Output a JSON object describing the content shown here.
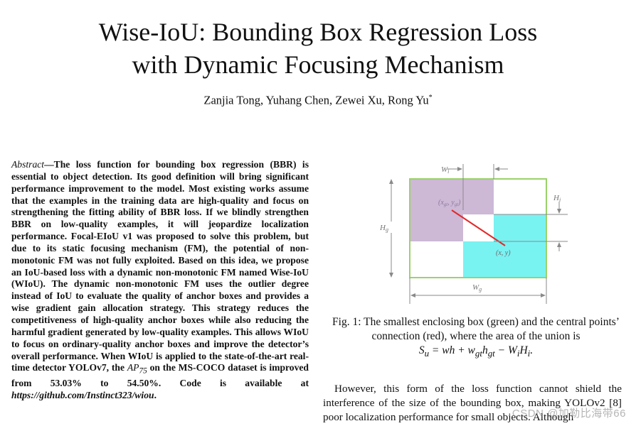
{
  "title_line1": "Wise-IoU: Bounding Box Regression Loss",
  "title_line2": "with Dynamic Focusing Mechanism",
  "authors": "Zanjia Tong, Yuhang Chen, Zewei Xu, Rong Yu",
  "author_mark": "*",
  "abstract": {
    "lead": "Abstract",
    "dash": "—",
    "text": "The loss function for bounding box regression (BBR) is essential to object detection. Its good definition will bring significant performance improvement to the model. Most existing works assume that the examples in the training data are high-quality and focus on strengthening the fitting ability of BBR loss. If we blindly strengthen BBR on low-quality examples, it will jeopardize localization performance. Focal-EIoU v1 was proposed to solve this problem, but due to its static focusing mechanism (FM), the potential of non-monotonic FM was not fully exploited. Based on this idea, we propose an IoU-based loss with a dynamic non-monotonic FM named Wise-IoU (WIoU). The dynamic non-monotonic FM uses the outlier degree instead of IoU to evaluate the quality of anchor boxes and provides a wise gradient gain allocation strategy. This strategy reduces the competitiveness of high-quality anchor boxes while also reducing the harmful gradient generated by low-quality examples. This allows WIoU to focus on ordinary-quality anchor boxes and improve the detector’s overall performance. When WIoU is applied to the state-of-the-art real-time detector YOLOv7, the",
    "ap_symbol": "AP",
    "ap_sub": "75",
    "text2": " on the MS-COCO dataset is improved from 53.03% to 54.50%. Code is available at ",
    "code_url": "https://github.com/Instinct323/wiou",
    "end": "."
  },
  "figure": {
    "label_wi": "W",
    "label_wi_sub": "i",
    "label_hi": "H",
    "label_hi_sub": "i",
    "label_hg": "H",
    "label_hg_sub": "g",
    "label_wg": "W",
    "label_wg_sub": "g",
    "label_gt_point": "(x",
    "label_gt_point_sub": "gt",
    "label_gt_point_mid": ", y",
    "label_gt_point_end": ")",
    "label_pred_point": "(x, y)",
    "colors": {
      "enclosing": "#9bd26a",
      "gt_box": "#cdb8d6",
      "pred_box": "#79f2f2",
      "connection": "#e02a2a",
      "dimension": "#8a8a8a"
    }
  },
  "caption": {
    "text": "Fig. 1: The smallest enclosing box (green) and the central points’ connection (red), where the area of the union is",
    "formula": "S_u = wh + w_gt h_gt − W_i H_i."
  },
  "body_text": "However, this form of the loss function cannot shield the interference of the size of the bounding box, making YOLOv2 [8] poor localization performance for small objects. Although",
  "watermark": "CSDN @加勒比海带66"
}
